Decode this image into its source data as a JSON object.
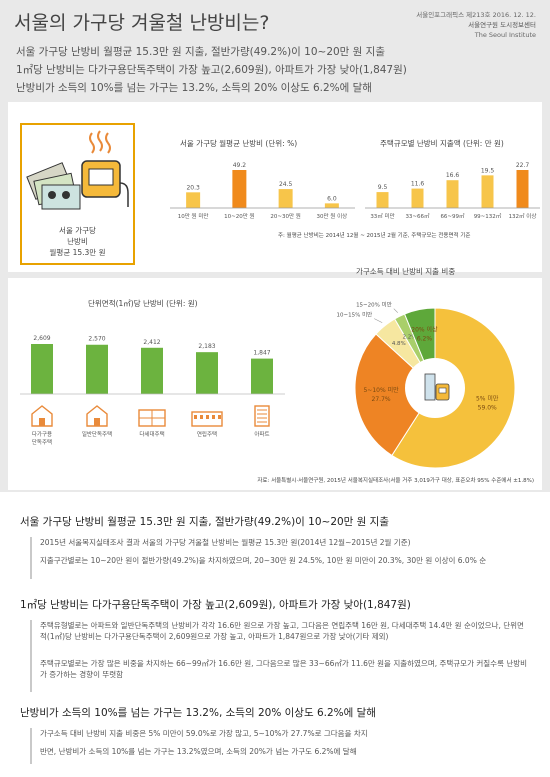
{
  "header": {
    "title": "서울의 가구당 겨울철 난방비는?",
    "meta_line1": "서울인포그래픽스 제213호 2016. 12. 12.",
    "meta_line2": "서울연구원 도시정보센터",
    "meta_line3": "The Seoul Institute",
    "subtitles": [
      "서울 가구당 난방비 월평균 15.3만 원 지출, 절반가량(49.2%)이 10~20만 원 지출",
      "1㎡당 난방비는 다가구용단독주택이 가장 높고(2,609원), 아파트가 가장 낮아(1,847원)",
      "난방비가 소득의 10%를 넘는 가구는 13.2%, 소득의 20% 이상도 6.2%에 달해"
    ]
  },
  "summary_box": {
    "line1": "서울 가구당",
    "line2": "난방비",
    "line3": "월평균 15.3만 원"
  },
  "note": "주: 월평균 난방비는 2014년 12월 ~ 2015년 2월 기준, 주택규모는 전용면적 기준",
  "source": "자료: 서울특별시·서울연구원, 2015년 서울복지실태조사(서울 거주 3,019가구 대상, 표준오차 95% 수준에서 ±1.8%)",
  "chart_data": [
    {
      "type": "bar",
      "title": "서울 가구당 월평균 난방비 (단위: %)",
      "categories": [
        "10만 원 미만",
        "10~20만 원",
        "20~30만 원",
        "30만 원 이상"
      ],
      "values": [
        20.3,
        49.2,
        24.5,
        6.0
      ],
      "value_labels": [
        "20.3",
        "49.2",
        "24.5",
        "6.0"
      ],
      "highlight_index": 1,
      "colors": {
        "bar": "#f7c54a",
        "highlight": "#f08a1c"
      }
    },
    {
      "type": "bar",
      "title": "주택규모별 난방비 지출액 (단위: 만 원)",
      "categories": [
        "33㎡ 미만",
        "33~66㎡",
        "66~99㎡",
        "99~132㎡",
        "132㎡ 이상"
      ],
      "values": [
        9.5,
        11.6,
        16.6,
        19.5,
        22.7
      ],
      "value_labels": [
        "9.5",
        "11.6",
        "16.6",
        "19.5",
        "22.7"
      ],
      "highlight_index": 4,
      "colors": {
        "bar": "#f7c54a",
        "highlight": "#f08a1c"
      }
    },
    {
      "type": "bar",
      "title": "단위면적(1㎡)당 난방비 (단위: 원)",
      "categories": [
        "다가구용 단독주택",
        "일반단독주택",
        "다세대주택",
        "연립주택",
        "아파트"
      ],
      "values": [
        2609,
        2570,
        2412,
        2183,
        1847
      ],
      "value_labels": [
        "2,609",
        "2,570",
        "2,412",
        "2,183",
        "1,847"
      ],
      "icons": [
        "house-icon",
        "house-icon",
        "townhouse-icon",
        "row-house-icon",
        "apartment-icon"
      ],
      "colors": {
        "bar": "#6cb33f",
        "icon": "#e98a3a"
      }
    },
    {
      "type": "pie",
      "title": "가구소득 대비 난방비 지출 비중",
      "slices": [
        {
          "label": "5% 미만",
          "value": 59.0,
          "value_label": "59.0%",
          "color": "#f5c13c"
        },
        {
          "label": "5~10% 미만",
          "value": 27.7,
          "value_label": "27.7%",
          "color": "#ee8424"
        },
        {
          "label": "10~15% 미만",
          "value": 4.8,
          "value_label": "4.8%",
          "color": "#f6e7a0"
        },
        {
          "label": "15~20% 미만",
          "value": 2.2,
          "value_label": "2.2%",
          "color": "#a9cf6a"
        },
        {
          "label": "20% 이상",
          "value": 6.2,
          "value_label": "6.2%",
          "color": "#5ea83a"
        }
      ]
    }
  ],
  "text_sections": [
    {
      "heading": "서울 가구당 난방비 월평균 15.3만 원 지출, 절반가량(49.2%)이 10~20만 원 지출",
      "paragraphs": [
        "2015년 서울복지실태조사 결과 서울의 가구당 겨울철 난방비는 월평균 15.3만 원(2014년 12월~2015년 2월 기준)",
        "지출구간별로는 10~20만 원이 절반가량(49.2%)을 차지하였으며, 20~30만 원 24.5%, 10만 원 미만이 20.3%, 30만 원 이상이 6.0% 순"
      ]
    },
    {
      "heading": "1㎡당 난방비는 다가구용단독주택이 가장 높고(2,609원), 아파트가 가장 낮아(1,847원)",
      "paragraphs": [
        "주택유형별로는 아파트와 일반단독주택의 난방비가 각각 16.6만 원으로 가장 높고, 그다음은 연립주택 16만 원, 다세대주택 14.4만 원 순이었으나, 단위면적(1㎡)당 난방비는 다가구용단독주택이 2,609원으로 가장 높고, 아파트가 1,847원으로 가장 낮아(기타 제외)",
        "주택규모별로는 가장 많은 비중을 차지하는 66~99㎡가 16.6만 원, 그다음으로 많은 33~66㎡가 11.6만 원을 지출하였으며, 주택규모가 커질수록 난방비가 증가하는 경향이 뚜렷함"
      ]
    },
    {
      "heading": "난방비가 소득의 10%를 넘는 가구는 13.2%, 소득의 20% 이상도 6.2%에 달해",
      "paragraphs": [
        "가구소득 대비 난방비 지출 비중은 5% 미만이 59.0%로 가장 많고, 5~10%가 27.7%로 그다음을 차지",
        "반면, 난방비가 소득의 10%를 넘는 가구는 13.2%였으며, 소득의 20%가 넘는 가구도 6.2%에 달해"
      ]
    }
  ]
}
